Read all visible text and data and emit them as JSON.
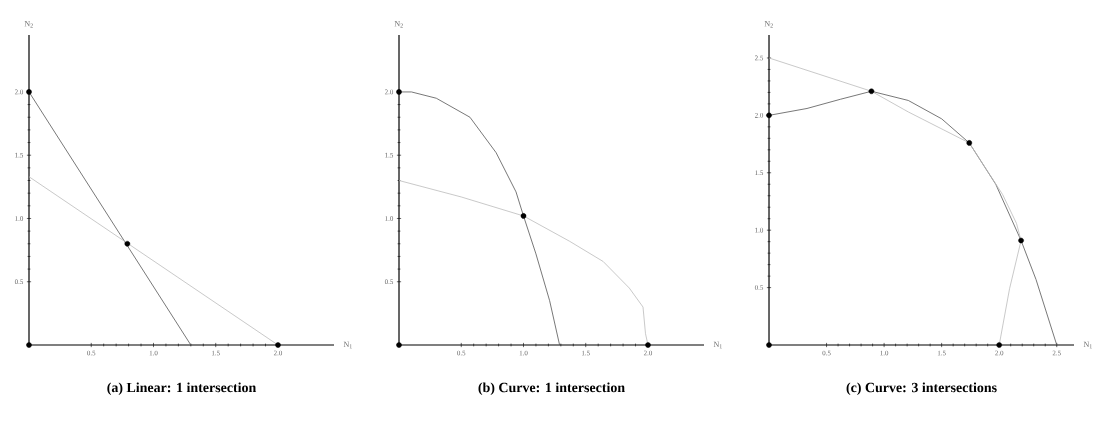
{
  "chart_data": [
    {
      "type": "line",
      "title": "(a)  Linear: 1 intersection",
      "xlabel": "N$_{1}$",
      "ylabel": "N$_{2}$",
      "xlim": [
        0,
        2.45
      ],
      "ylim": [
        0,
        2.45
      ],
      "xticks": [
        {
          "value": 0.5,
          "label": "0.5"
        },
        {
          "value": 1,
          "label": "1.0"
        },
        {
          "value": 1.5,
          "label": "1.5"
        },
        {
          "value": 2,
          "label": "2.0"
        }
      ],
      "yticks": [
        {
          "value": 0.5,
          "label": "0.5"
        },
        {
          "value": 1,
          "label": "1.0"
        },
        {
          "value": 1.5,
          "label": "1.5"
        },
        {
          "value": 2,
          "label": "2.0"
        }
      ],
      "series": [
        {
          "type": "line",
          "color": "#555555",
          "x": [
            0,
            1.3
          ],
          "values": [
            2,
            0
          ]
        },
        {
          "type": "line",
          "color": "#bbbbbb",
          "x": [
            0,
            2
          ],
          "values": [
            1.33,
            0
          ]
        },
        {
          "type": "scatter",
          "color": "#000000",
          "x": [
            0,
            0,
            2,
            0.79
          ],
          "values": [
            2,
            0,
            0,
            0.8
          ]
        }
      ]
    },
    {
      "type": "line",
      "title": "(b)  Curve: 1 intersection",
      "xlabel": "N$_{1}$",
      "ylabel": "N$_{2}$",
      "xlim": [
        0,
        2.45
      ],
      "ylim": [
        0,
        2.45
      ],
      "xticks": [
        {
          "value": 0.5,
          "label": "0.5"
        },
        {
          "value": 1,
          "label": "1.0"
        },
        {
          "value": 1.5,
          "label": "1.5"
        },
        {
          "value": 2,
          "label": "2.0"
        }
      ],
      "yticks": [
        {
          "value": 0.5,
          "label": "0.5"
        },
        {
          "value": 1,
          "label": "1.0"
        },
        {
          "value": 1.5,
          "label": "1.5"
        },
        {
          "value": 2,
          "label": "2.0"
        }
      ],
      "series": [
        {
          "type": "line",
          "color": "#555555",
          "x": [
            0,
            0.1,
            0.3,
            0.57,
            0.78,
            0.94,
            1.0,
            1.1,
            1.21,
            1.29
          ],
          "values": [
            2,
            2,
            1.95,
            1.8,
            1.52,
            1.21,
            1.02,
            0.72,
            0.35,
            0
          ]
        },
        {
          "type": "line",
          "color": "#bbbbbb",
          "x": [
            0,
            0.5,
            1.0,
            1.37,
            1.64,
            1.85,
            1.96,
            1.98,
            2.0
          ],
          "values": [
            1.3,
            1.17,
            1.02,
            0.82,
            0.66,
            0.45,
            0.3,
            0.09,
            0
          ]
        },
        {
          "type": "scatter",
          "color": "#000000",
          "x": [
            0,
            0,
            2,
            1.0
          ],
          "values": [
            2,
            0,
            0,
            1.02
          ]
        }
      ]
    },
    {
      "type": "line",
      "title": "(c)  Curve: 3 intersections",
      "xlabel": "N$_{1}$",
      "ylabel": "N$_{2}$",
      "xlim": [
        0,
        2.65
      ],
      "ylim": [
        0,
        2.7
      ],
      "xticks": [
        {
          "value": 0.5,
          "label": "0.5"
        },
        {
          "value": 1,
          "label": "1.0"
        },
        {
          "value": 1.5,
          "label": "1.5"
        },
        {
          "value": 2,
          "label": "2.0"
        },
        {
          "value": 2.5,
          "label": "2.5"
        }
      ],
      "yticks": [
        {
          "value": 0.5,
          "label": "0.5"
        },
        {
          "value": 1,
          "label": "1.0"
        },
        {
          "value": 1.5,
          "label": "1.5"
        },
        {
          "value": 2,
          "label": "2.0"
        },
        {
          "value": 2.5,
          "label": "2.5"
        }
      ],
      "series": [
        {
          "type": "line",
          "color": "#555555",
          "x": [
            0,
            0.33,
            0.62,
            0.89,
            1.21,
            1.5,
            1.74,
            1.97,
            2.19,
            2.32,
            2.5
          ],
          "values": [
            2,
            2.06,
            2.14,
            2.21,
            2.13,
            1.97,
            1.76,
            1.4,
            0.91,
            0.57,
            0
          ]
        },
        {
          "type": "line",
          "color": "#bbbbbb",
          "x": [
            0,
            0.89,
            1.21,
            1.74,
            2.03,
            2.15,
            2.19,
            2.09,
            2.0
          ],
          "values": [
            2.5,
            2.21,
            2.03,
            1.76,
            1.31,
            1.06,
            0.91,
            0.49,
            0
          ]
        },
        {
          "type": "scatter",
          "color": "#000000",
          "x": [
            0,
            0,
            2,
            0.89,
            1.74,
            2.19
          ],
          "values": [
            2,
            0,
            0,
            2.21,
            1.76,
            0.91
          ]
        }
      ]
    }
  ]
}
